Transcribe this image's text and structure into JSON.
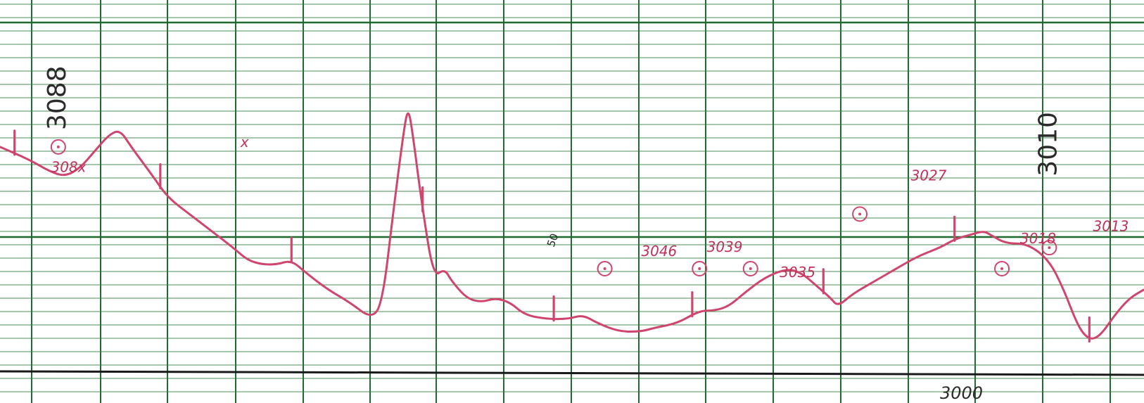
{
  "chart_data": {
    "type": "line",
    "title": "",
    "xlabel": "",
    "ylabel": "",
    "grid": true,
    "colors": {
      "paper": "#ffffff",
      "grid_major": "#1f6b2f",
      "grid_minor": "#2f7a3d",
      "trace": "#d0456e",
      "ink": "#2b2b2b"
    },
    "series": [
      {
        "values": [
          [
            0,
            35
          ],
          [
            4,
            38
          ],
          [
            7,
            41
          ],
          [
            9,
            42
          ],
          [
            11,
            40
          ],
          [
            13,
            36
          ],
          [
            15,
            32
          ],
          [
            16.5,
            31
          ],
          [
            18,
            35
          ],
          [
            21,
            42
          ],
          [
            23,
            47
          ],
          [
            26,
            51
          ],
          [
            29,
            55
          ],
          [
            32,
            59
          ],
          [
            34,
            62
          ],
          [
            36,
            63
          ],
          [
            38,
            63
          ],
          [
            40,
            62
          ],
          [
            42,
            65
          ],
          [
            45,
            69
          ],
          [
            48,
            72
          ],
          [
            51,
            76
          ],
          [
            52.5,
            72
          ],
          [
            54,
            50
          ],
          [
            55.5,
            30
          ],
          [
            56,
            26
          ],
          [
            56.5,
            30
          ],
          [
            58,
            50
          ],
          [
            59.5,
            66
          ],
          [
            61,
            64
          ],
          [
            62,
            67
          ],
          [
            64,
            71
          ],
          [
            66,
            72
          ],
          [
            68,
            71
          ],
          [
            70,
            72
          ],
          [
            72,
            75
          ],
          [
            75,
            76
          ],
          [
            78,
            76
          ],
          [
            80,
            75
          ],
          [
            82,
            77
          ],
          [
            85,
            79
          ],
          [
            88,
            79
          ],
          [
            90,
            78
          ],
          [
            93,
            77
          ],
          [
            96,
            74
          ],
          [
            98,
            74
          ],
          [
            100,
            73
          ],
          [
            102,
            70
          ],
          [
            105,
            66
          ],
          [
            108,
            64
          ],
          [
            110,
            65
          ],
          [
            112,
            68
          ],
          [
            114,
            71
          ],
          [
            115,
            73
          ],
          [
            117,
            70
          ],
          [
            120,
            67
          ],
          [
            123,
            64
          ],
          [
            126,
            61
          ],
          [
            129,
            59
          ],
          [
            131,
            57
          ],
          [
            133,
            56
          ],
          [
            135,
            55
          ],
          [
            136,
            56
          ],
          [
            138,
            58
          ],
          [
            141,
            58
          ],
          [
            144,
            62
          ],
          [
            146,
            69
          ],
          [
            148,
            78
          ],
          [
            149.5,
            81
          ],
          [
            151,
            80
          ],
          [
            153,
            75
          ],
          [
            155,
            71
          ],
          [
            157,
            69
          ]
        ]
      }
    ],
    "xlim": [
      0,
      157
    ],
    "ylim": [
      0,
      96
    ],
    "annotations": [
      {
        "text": "3088",
        "x": 9,
        "y": 31,
        "style": "ink-large-rotated"
      },
      {
        "text": "308x",
        "x": 7,
        "y": 41,
        "style": "red"
      },
      {
        "text": "x",
        "x": 33,
        "y": 35,
        "style": "red"
      },
      {
        "text": "50",
        "x": 76,
        "y": 59,
        "style": "ink-small-rotated"
      },
      {
        "text": "3046",
        "x": 88,
        "y": 61,
        "style": "red"
      },
      {
        "text": "3039",
        "x": 97,
        "y": 60,
        "style": "red"
      },
      {
        "text": "3035",
        "x": 107,
        "y": 66,
        "style": "red"
      },
      {
        "text": "3027",
        "x": 125,
        "y": 43,
        "style": "red"
      },
      {
        "text": "3018",
        "x": 140,
        "y": 58,
        "style": "red"
      },
      {
        "text": "3013",
        "x": 150,
        "y": 55,
        "style": "red"
      },
      {
        "text": "3010",
        "x": 145,
        "y": 42,
        "style": "ink-large-rotated"
      },
      {
        "text": "3000",
        "x": 129,
        "y": 95,
        "style": "ink"
      }
    ],
    "event_markers_x": [
      2,
      22,
      40,
      58,
      76,
      95,
      113,
      131,
      149.5
    ],
    "circle_markers": [
      {
        "x": 8,
        "y": 35
      },
      {
        "x": 83,
        "y": 64
      },
      {
        "x": 96,
        "y": 64
      },
      {
        "x": 103,
        "y": 64
      },
      {
        "x": 118,
        "y": 51
      },
      {
        "x": 137.5,
        "y": 64
      },
      {
        "x": 144,
        "y": 59
      }
    ]
  }
}
